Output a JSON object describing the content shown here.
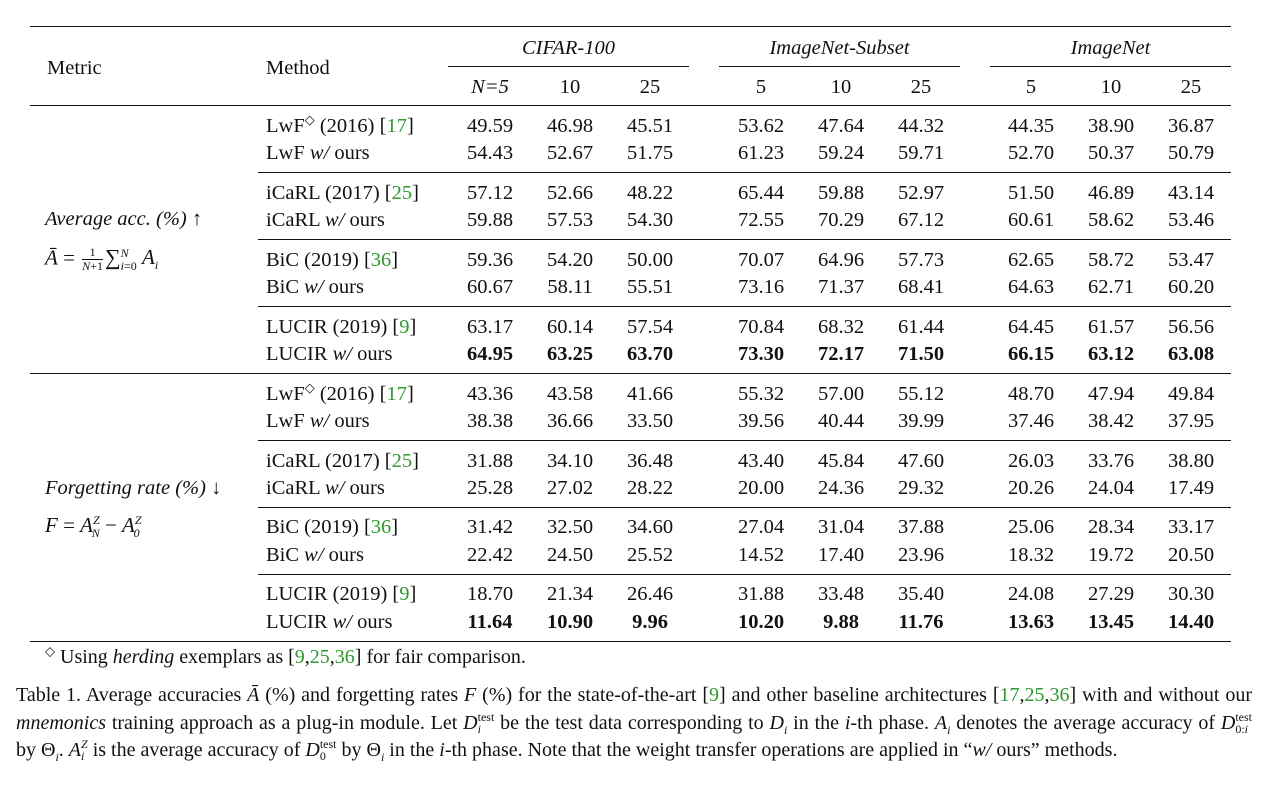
{
  "header": {
    "metric": "Metric",
    "method": "Method",
    "groups": [
      "CIFAR-100",
      "ImageNet-Subset",
      "ImageNet"
    ],
    "phases": [
      "N=5",
      "10",
      "25",
      "5",
      "10",
      "25",
      "5",
      "10",
      "25"
    ]
  },
  "metrics": {
    "acc_label": "Average acc. (%)",
    "acc_arrow": "↑",
    "forget_label": "Forgetting rate (%)",
    "forget_arrow": "↓"
  },
  "rows": [
    {
      "pre": "LwF",
      "sup": "◇",
      "post": " (2016) [",
      "cite": "17",
      "close": "]",
      "it": "",
      "tail": "",
      "bold": false,
      "values": [
        "49.59",
        "46.98",
        "45.51",
        "53.62",
        "47.64",
        "44.32",
        "44.35",
        "38.90",
        "36.87"
      ]
    },
    {
      "pre": "LwF ",
      "sup": "",
      "post": "",
      "cite": "",
      "close": "",
      "it": "w/",
      "tail": " ours",
      "bold": false,
      "values": [
        "54.43",
        "52.67",
        "51.75",
        "61.23",
        "59.24",
        "59.71",
        "52.70",
        "50.37",
        "50.79"
      ]
    },
    {
      "pre": "iCaRL (2017) [",
      "sup": "",
      "post": "",
      "cite": "25",
      "close": "]",
      "it": "",
      "tail": "",
      "bold": false,
      "values": [
        "57.12",
        "52.66",
        "48.22",
        "65.44",
        "59.88",
        "52.97",
        "51.50",
        "46.89",
        "43.14"
      ]
    },
    {
      "pre": "iCaRL ",
      "sup": "",
      "post": "",
      "cite": "",
      "close": "",
      "it": "w/",
      "tail": " ours",
      "bold": false,
      "values": [
        "59.88",
        "57.53",
        "54.30",
        "72.55",
        "70.29",
        "67.12",
        "60.61",
        "58.62",
        "53.46"
      ]
    },
    {
      "pre": "BiC (2019) [",
      "sup": "",
      "post": "",
      "cite": "36",
      "close": "]",
      "it": "",
      "tail": "",
      "bold": false,
      "values": [
        "59.36",
        "54.20",
        "50.00",
        "70.07",
        "64.96",
        "57.73",
        "62.65",
        "58.72",
        "53.47"
      ]
    },
    {
      "pre": "BiC ",
      "sup": "",
      "post": "",
      "cite": "",
      "close": "",
      "it": "w/",
      "tail": " ours",
      "bold": false,
      "values": [
        "60.67",
        "58.11",
        "55.51",
        "73.16",
        "71.37",
        "68.41",
        "64.63",
        "62.71",
        "60.20"
      ]
    },
    {
      "pre": "LUCIR (2019) [",
      "sup": "",
      "post": "",
      "cite": "9",
      "close": "]",
      "it": "",
      "tail": "",
      "bold": false,
      "values": [
        "63.17",
        "60.14",
        "57.54",
        "70.84",
        "68.32",
        "61.44",
        "64.45",
        "61.57",
        "56.56"
      ]
    },
    {
      "pre": "LUCIR ",
      "sup": "",
      "post": "",
      "cite": "",
      "close": "",
      "it": "w/",
      "tail": " ours",
      "bold": true,
      "values": [
        "64.95",
        "63.25",
        "63.70",
        "73.30",
        "72.17",
        "71.50",
        "66.15",
        "63.12",
        "63.08"
      ]
    },
    {
      "pre": "LwF",
      "sup": "◇",
      "post": " (2016) [",
      "cite": "17",
      "close": "]",
      "it": "",
      "tail": "",
      "bold": false,
      "values": [
        "43.36",
        "43.58",
        "41.66",
        "55.32",
        "57.00",
        "55.12",
        "48.70",
        "47.94",
        "49.84"
      ]
    },
    {
      "pre": "LwF ",
      "sup": "",
      "post": "",
      "cite": "",
      "close": "",
      "it": "w/",
      "tail": " ours",
      "bold": false,
      "values": [
        "38.38",
        "36.66",
        "33.50",
        "39.56",
        "40.44",
        "39.99",
        "37.46",
        "38.42",
        "37.95"
      ]
    },
    {
      "pre": "iCaRL (2017) [",
      "sup": "",
      "post": "",
      "cite": "25",
      "close": "]",
      "it": "",
      "tail": "",
      "bold": false,
      "values": [
        "31.88",
        "34.10",
        "36.48",
        "43.40",
        "45.84",
        "47.60",
        "26.03",
        "33.76",
        "38.80"
      ]
    },
    {
      "pre": "iCaRL ",
      "sup": "",
      "post": "",
      "cite": "",
      "close": "",
      "it": "w/",
      "tail": " ours",
      "bold": false,
      "values": [
        "25.28",
        "27.02",
        "28.22",
        "20.00",
        "24.36",
        "29.32",
        "20.26",
        "24.04",
        "17.49"
      ]
    },
    {
      "pre": "BiC (2019) [",
      "sup": "",
      "post": "",
      "cite": "36",
      "close": "]",
      "it": "",
      "tail": "",
      "bold": false,
      "values": [
        "31.42",
        "32.50",
        "34.60",
        "27.04",
        "31.04",
        "37.88",
        "25.06",
        "28.34",
        "33.17"
      ]
    },
    {
      "pre": "BiC ",
      "sup": "",
      "post": "",
      "cite": "",
      "close": "",
      "it": "w/",
      "tail": " ours",
      "bold": false,
      "values": [
        "22.42",
        "24.50",
        "25.52",
        "14.52",
        "17.40",
        "23.96",
        "18.32",
        "19.72",
        "20.50"
      ]
    },
    {
      "pre": "LUCIR (2019) [",
      "sup": "",
      "post": "",
      "cite": "9",
      "close": "]",
      "it": "",
      "tail": "",
      "bold": false,
      "values": [
        "18.70",
        "21.34",
        "26.46",
        "31.88",
        "33.48",
        "35.40",
        "24.08",
        "27.29",
        "30.30"
      ]
    },
    {
      "pre": "LUCIR ",
      "sup": "",
      "post": "",
      "cite": "",
      "close": "",
      "it": "w/",
      "tail": " ours",
      "bold": true,
      "values": [
        "11.64",
        "10.90",
        "9.96",
        "10.20",
        "9.88",
        "11.76",
        "13.63",
        "13.45",
        "14.40"
      ]
    }
  ],
  "footnote": {
    "mark": "◇",
    "a": " Using ",
    "it": "herding",
    "b": " exemplars as [",
    "c1": "9",
    "c2": "25",
    "c3": "36",
    "end": "] for fair comparison.",
    "comma": ","
  },
  "caption": {
    "p1": "Table 1. Average accuracies ",
    "p2": " (%) and forgetting rates ",
    "p3": " (%) for the state-of-the-art [",
    "c9": "9",
    "p4": "] and other baseline architectures [",
    "c17": "17",
    "c25": "25",
    "c36": "36",
    "p5": "] with and without our ",
    "mn": "mnemonics",
    "p6": " training approach as a plug-in module. Let ",
    "p7": " be the test data corresponding to ",
    "p8": " in the ",
    "p9": "-th phase. ",
    "p10": " denotes the average accuracy of ",
    "p11": " by ",
    "p12": ". ",
    "p13": " is the average accuracy of ",
    "p14": " by ",
    "p15": " in the ",
    "p16": "-th phase. Note that the weight transfer operations are applied in “",
    "wo": "w/",
    "p17": " ours” methods.",
    "test": "test",
    "comma": ","
  }
}
